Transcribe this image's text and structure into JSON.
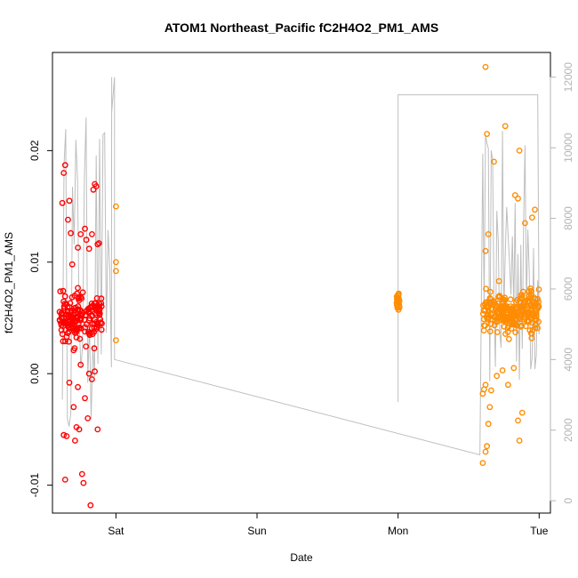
{
  "chart_data": {
    "type": "scatter",
    "title": "ATOM1 Northeast_Pacific fC2H4O2_PM1_AMS",
    "xlabel": "Date",
    "ylabel": "fC2H4O2_PM1_AMS",
    "x_ticks": [
      "Sat",
      "Sun",
      "Mon",
      "Tue"
    ],
    "x_tick_values": [
      0,
      1,
      2,
      3
    ],
    "xlim": [
      -0.45,
      3.08
    ],
    "ylim": [
      -0.0125,
      0.0288
    ],
    "y_ticks": [
      -0.01,
      0.0,
      0.01,
      0.02
    ],
    "y_tick_labels": [
      "-0.01",
      "0.00",
      "0.01",
      "0.02"
    ],
    "y2_ticks": [
      0,
      2000,
      4000,
      6000,
      8000,
      10000,
      12000
    ],
    "y2_tick_labels": [
      "0",
      "2000",
      "4000",
      "6000",
      "8000",
      "10000",
      "12000"
    ],
    "y2lim": [
      -350,
      12700
    ],
    "colors": {
      "series1": "#ff0000",
      "series2": "#ff8c00",
      "altitude": "#bebebe"
    },
    "series": [
      {
        "color": "#ff0000",
        "points": [
          [
            -0.38,
            0.0153
          ],
          [
            -0.37,
            0.018
          ],
          [
            -0.36,
            0.0187
          ],
          [
            -0.37,
            -0.0055
          ],
          [
            -0.36,
            -0.0095
          ],
          [
            -0.35,
            -0.0056
          ],
          [
            -0.34,
            0.0138
          ],
          [
            -0.33,
            0.0155
          ],
          [
            -0.32,
            0.0126
          ],
          [
            -0.31,
            0.0098
          ],
          [
            -0.3,
            -0.003
          ],
          [
            -0.29,
            -0.006
          ],
          [
            -0.28,
            -0.0048
          ],
          [
            -0.27,
            0.0113
          ],
          [
            -0.26,
            -0.005
          ],
          [
            -0.25,
            0.0125
          ],
          [
            -0.24,
            -0.009
          ],
          [
            -0.23,
            -0.0098
          ],
          [
            -0.22,
            0.013
          ],
          [
            -0.21,
            0.012
          ],
          [
            -0.2,
            -0.004
          ],
          [
            -0.19,
            0.0112
          ],
          [
            -0.18,
            -0.0118
          ],
          [
            -0.17,
            0.0125
          ],
          [
            -0.16,
            0.0165
          ],
          [
            -0.15,
            0.017
          ],
          [
            -0.14,
            0.0168
          ],
          [
            -0.13,
            0.0116
          ],
          [
            -0.12,
            0.0117
          ],
          [
            -0.13,
            -0.005
          ],
          [
            -0.33,
            -0.0008
          ],
          [
            -0.3,
            0.0021
          ],
          [
            -0.27,
            -0.0012
          ],
          [
            -0.25,
            0.0008
          ],
          [
            -0.22,
            -0.0022
          ],
          [
            -0.19,
            0.0
          ],
          [
            -0.17,
            -0.0005
          ],
          [
            -0.15,
            0.0002
          ]
        ]
      },
      {
        "color": "#ff8c00",
        "points": [
          [
            0.0,
            0.015
          ],
          [
            0.0,
            0.01
          ],
          [
            0.0,
            0.003
          ],
          [
            0.0,
            0.0092
          ],
          [
            2.62,
            0.0275
          ],
          [
            2.63,
            0.0215
          ],
          [
            2.76,
            0.0222
          ],
          [
            2.68,
            0.019
          ],
          [
            2.62,
            0.011
          ],
          [
            2.64,
            0.0125
          ],
          [
            2.83,
            0.016
          ],
          [
            2.85,
            0.0157
          ],
          [
            2.86,
            0.02
          ],
          [
            2.9,
            0.0135
          ],
          [
            2.95,
            0.014
          ],
          [
            2.97,
            0.0147
          ],
          [
            2.6,
            -0.008
          ],
          [
            2.62,
            -0.007
          ],
          [
            2.63,
            -0.0065
          ],
          [
            2.64,
            -0.0045
          ],
          [
            2.65,
            -0.003
          ],
          [
            2.66,
            -0.0015
          ],
          [
            2.85,
            -0.0042
          ],
          [
            2.86,
            -0.006
          ],
          [
            2.88,
            -0.0035
          ],
          [
            2.6,
            -0.0018
          ],
          [
            2.61,
            -0.0014
          ],
          [
            2.62,
            -0.001
          ],
          [
            2.7,
            -0.0002
          ],
          [
            2.74,
            0.0003
          ],
          [
            2.78,
            -0.001
          ],
          [
            2.82,
            0.0005
          ]
        ]
      }
    ]
  }
}
